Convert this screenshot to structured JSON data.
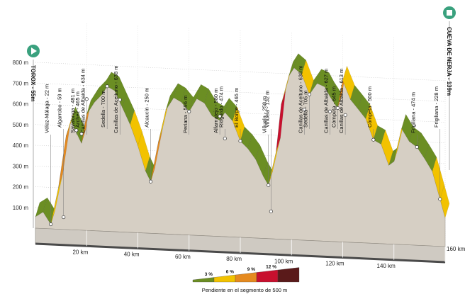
{
  "chart_data": {
    "type": "area",
    "title": "",
    "xlabel": "",
    "ylabel": "",
    "xlim": [
      0,
      160
    ],
    "ylim": [
      0,
      1000
    ],
    "y_ticks": [
      100,
      200,
      300,
      400,
      500,
      600,
      700,
      800
    ],
    "y_tick_labels": [
      "100 m",
      "200 m",
      "300 m",
      "400 m",
      "500 m",
      "600 m",
      "700 m",
      "800 m"
    ],
    "x_ticks": [
      20,
      40,
      60,
      80,
      100,
      120,
      140,
      160
    ],
    "x_tick_labels": [
      "20 km",
      "40 km",
      "60 km",
      "80 km",
      "100 km",
      "120 km",
      "140 km",
      "160 km"
    ],
    "start_label": "TOROX - 55m",
    "finish_label": "CUEVA DE NERJA - 139m",
    "profile": [
      [
        0,
        55
      ],
      [
        3,
        80
      ],
      [
        6,
        22
      ],
      [
        9,
        200
      ],
      [
        12,
        450
      ],
      [
        14,
        525
      ],
      [
        16,
        470
      ],
      [
        18,
        420
      ],
      [
        20,
        560
      ],
      [
        23,
        620
      ],
      [
        26,
        660
      ],
      [
        28,
        700
      ],
      [
        31,
        680
      ],
      [
        34,
        600
      ],
      [
        37,
        520
      ],
      [
        40,
        420
      ],
      [
        43,
        300
      ],
      [
        45,
        250
      ],
      [
        48,
        440
      ],
      [
        51,
        600
      ],
      [
        54,
        660
      ],
      [
        57,
        640
      ],
      [
        60,
        596
      ],
      [
        63,
        660
      ],
      [
        66,
        640
      ],
      [
        69,
        580
      ],
      [
        72,
        560
      ],
      [
        74,
        600
      ],
      [
        77,
        560
      ],
      [
        80,
        465
      ],
      [
        83,
        430
      ],
      [
        86,
        380
      ],
      [
        89,
        300
      ],
      [
        91,
        258
      ],
      [
        94,
        420
      ],
      [
        96,
        650
      ],
      [
        99,
        790
      ],
      [
        101,
        830
      ],
      [
        104,
        800
      ],
      [
        107,
        705
      ],
      [
        110,
        760
      ],
      [
        113,
        745
      ],
      [
        115,
        700
      ],
      [
        118,
        645
      ],
      [
        120,
        780
      ],
      [
        123,
        690
      ],
      [
        126,
        645
      ],
      [
        129,
        600
      ],
      [
        132,
        500
      ],
      [
        135,
        480
      ],
      [
        138,
        380
      ],
      [
        140,
        400
      ],
      [
        143,
        560
      ],
      [
        146,
        500
      ],
      [
        149,
        474
      ],
      [
        152,
        420
      ],
      [
        155,
        360
      ],
      [
        158,
        228
      ],
      [
        160,
        139
      ]
    ],
    "waypoints": [
      {
        "name": "Vélez-Málaga - 22 m",
        "km": 6,
        "alt": 22
      },
      {
        "name": "Algarrobo - 59 m",
        "km": 11,
        "alt": 59
      },
      {
        "name": "Sayalonga - 481 m",
        "km": 16,
        "alt": 481
      },
      {
        "name": "Archez - 465 m",
        "km": 18,
        "alt": 465
      },
      {
        "name": "Canillas de Albaida - 634 m",
        "km": 20,
        "alt": 634
      },
      {
        "name": "Sedella - 700 m",
        "km": 28,
        "alt": 700
      },
      {
        "name": "Canillas de Aceituno - 638 m",
        "km": 33,
        "alt": 638
      },
      {
        "name": "Alcaucín - 250 m",
        "km": 45,
        "alt": 250
      },
      {
        "name": "Periana - 596 m",
        "km": 60,
        "alt": 596
      },
      {
        "name": "Riogordo - 474 m",
        "km": 74,
        "alt": 474
      },
      {
        "name": "Alfarnatejo - 580 m",
        "km": 72,
        "alt": 580
      },
      {
        "name": "El Borge - 465 m",
        "km": 80,
        "alt": 465
      },
      {
        "name": "Viñuela - 258 m",
        "km": 91,
        "alt": 258
      },
      {
        "name": "Viñuela - 132 m",
        "km": 92,
        "alt": 132
      },
      {
        "name": "Canillas de Aceituno - 630 m",
        "km": 105,
        "alt": 630
      },
      {
        "name": "Sedella - 705 m",
        "km": 107,
        "alt": 705
      },
      {
        "name": "Canillas de Albaida - 627 m",
        "km": 115,
        "alt": 627
      },
      {
        "name": "Cómpeta - 645 m",
        "km": 118,
        "alt": 645
      },
      {
        "name": "Canillas de Albaida - 613 m",
        "km": 121,
        "alt": 613
      },
      {
        "name": "Cómpeta - 500 m",
        "km": 132,
        "alt": 500
      },
      {
        "name": "Frigiliana - 474 m",
        "km": 149,
        "alt": 474
      },
      {
        "name": "Frigiliana - 228 m",
        "km": 158,
        "alt": 228
      }
    ],
    "legend": {
      "caption": "Pendiente en el segmento de 500 m",
      "items": [
        {
          "label": "3 %",
          "color": "#6b8e23"
        },
        {
          "label": "6 %",
          "color": "#f2c200"
        },
        {
          "label": "9 %",
          "color": "#e58a1f"
        },
        {
          "label": "12 %",
          "color": "#c8102e"
        },
        {
          "label": "",
          "color": "#5a1a1a"
        }
      ]
    },
    "colors": {
      "terrain": "#d6cfc4",
      "base": "#4a4a4a",
      "marker": "#3aa17e",
      "grid": "#bbbbbb"
    }
  }
}
